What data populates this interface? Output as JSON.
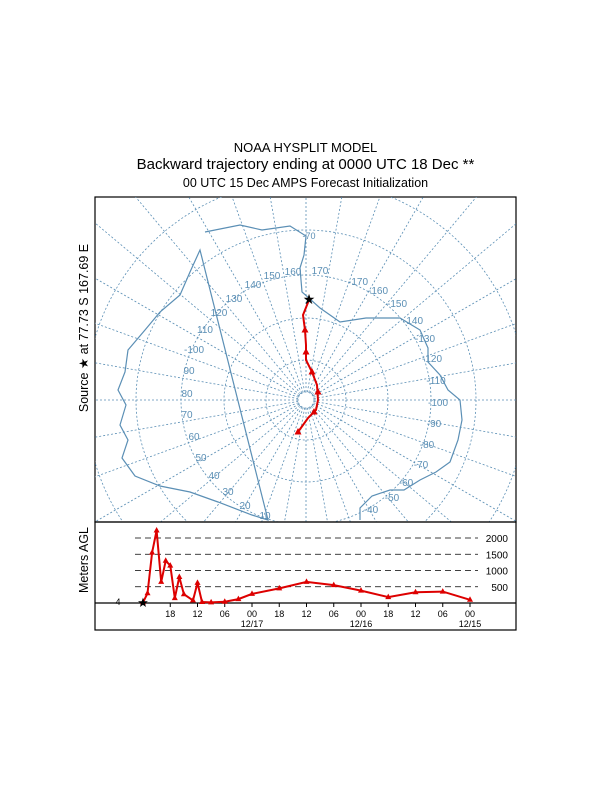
{
  "title": "NOAA HYSPLIT MODEL",
  "subtitle": "Backward trajectory ending at 0000 UTC 18 Dec **",
  "subtitle2": "00 UTC 15 Dec    AMPS  Forecast Initialization",
  "map_ylabel": "Source ★ at   77.73 S  167.69 E",
  "colors": {
    "grid": "#5b8fb5",
    "trajectory": "#dd0000",
    "coast": "#5b8fb5",
    "marker": "#000000"
  },
  "chart_data": [
    {
      "type": "map",
      "projection": "polar stereographic, south pole",
      "source": {
        "lat": -77.73,
        "lon": 167.69
      },
      "latitude_label": "-70",
      "longitude_labels": [
        "10",
        "20",
        "30",
        "40",
        "50",
        "60",
        "70",
        "80",
        "90",
        "-100",
        "110",
        "120",
        "130",
        "140",
        "150",
        "160",
        "170",
        "-170",
        "-160",
        "-150",
        "-140",
        "-130",
        "-120",
        "-110",
        "-100",
        "-90",
        "-80",
        "-70",
        "-60",
        "-50",
        "-40"
      ],
      "legend": "none"
    },
    {
      "type": "line",
      "ylabel": "Meters AGL",
      "x_tick_labels": [
        "18",
        "12",
        "06",
        "00",
        "18",
        "12",
        "06",
        "00",
        "18",
        "12",
        "06",
        "00"
      ],
      "x_date_labels": [
        "12/17",
        "12/16",
        "12/15"
      ],
      "x_hours_before_end": [
        18,
        24,
        30,
        36,
        42,
        48,
        54,
        60,
        66,
        72
      ],
      "hours": [
        0,
        3,
        6,
        9,
        12,
        15,
        18,
        21,
        24,
        27,
        30,
        33,
        36,
        42,
        48,
        54,
        60,
        66,
        72
      ],
      "y_reference_lines": [
        500,
        1000,
        1500,
        2000
      ],
      "y_reference_labels": [
        "2000",
        "1500",
        "1000",
        "500"
      ],
      "start_height_label": "4",
      "series": [
        {
          "hours_before_end": [
            72,
            66,
            60,
            54,
            48,
            42,
            36,
            30,
            24,
            21,
            18,
            15,
            13,
            12,
            11,
            9,
            8,
            7,
            6,
            5,
            4,
            3,
            2,
            1,
            0
          ],
          "height_m": [
            100,
            350,
            330,
            180,
            380,
            550,
            650,
            450,
            280,
            120,
            40,
            20,
            30,
            620,
            80,
            270,
            800,
            150,
            1150,
            1300,
            650,
            2230,
            1550,
            300,
            20
          ]
        }
      ]
    }
  ]
}
